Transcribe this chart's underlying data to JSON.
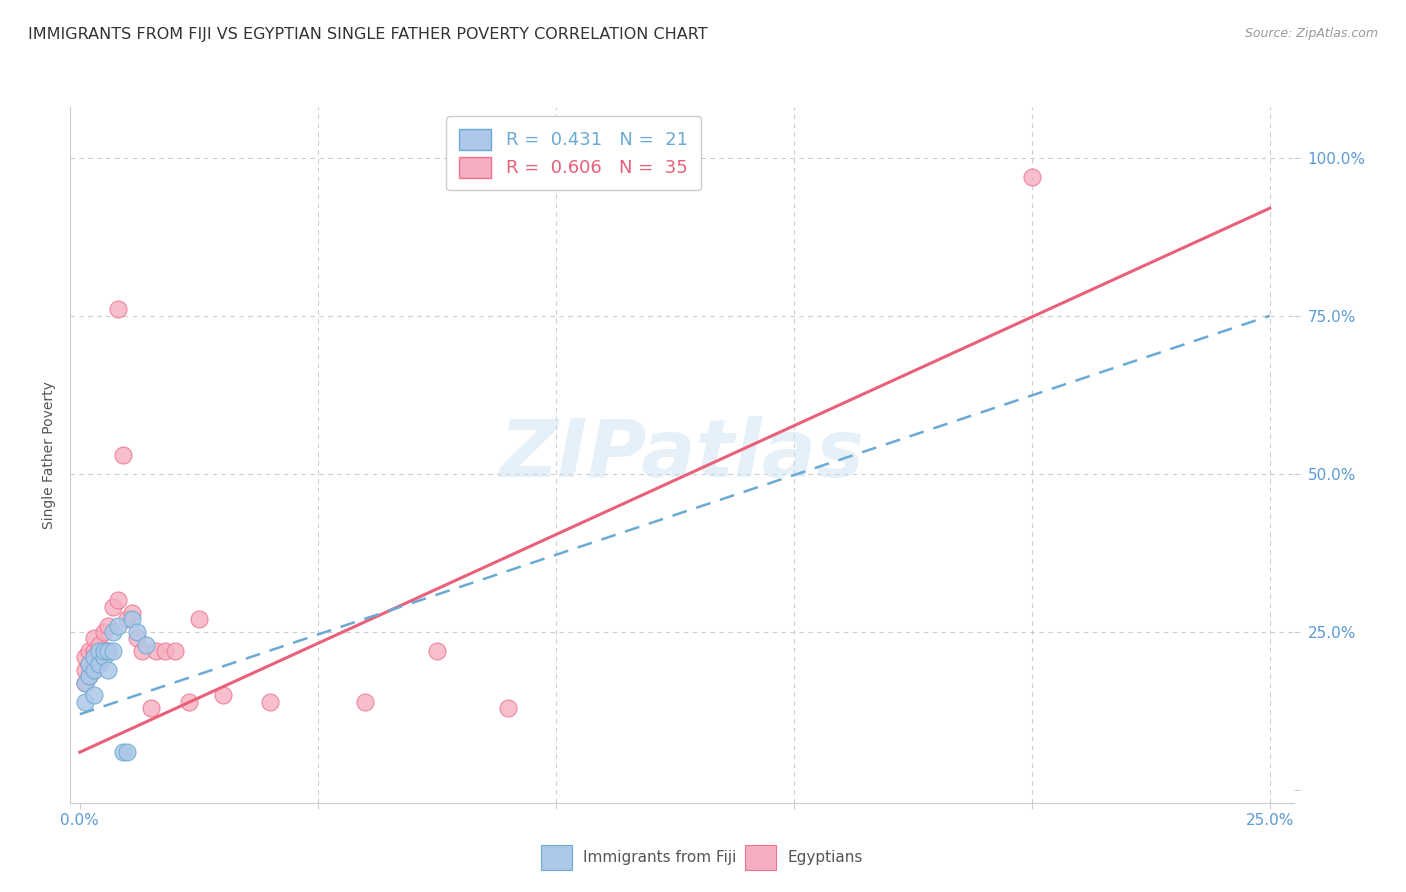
{
  "title": "IMMIGRANTS FROM FIJI VS EGYPTIAN SINGLE FATHER POVERTY CORRELATION CHART",
  "source": "Source: ZipAtlas.com",
  "ylabel": "Single Father Poverty",
  "yticks": [
    0.0,
    0.25,
    0.5,
    0.75,
    1.0
  ],
  "ytick_labels": [
    "",
    "25.0%",
    "50.0%",
    "75.0%",
    "100.0%"
  ],
  "xticks": [
    0.0,
    0.05,
    0.1,
    0.15,
    0.2,
    0.25
  ],
  "xtick_labels_show": [
    "0.0%",
    "",
    "",
    "",
    "",
    "25.0%"
  ],
  "xlim": [
    -0.002,
    0.255
  ],
  "ylim": [
    -0.02,
    1.08
  ],
  "fiji_R": 0.431,
  "fiji_N": 21,
  "egypt_R": 0.606,
  "egypt_N": 35,
  "fiji_color": "#adc8e8",
  "egypt_color": "#f5afc0",
  "fiji_edge_color": "#6aaad4",
  "egypt_edge_color": "#f07090",
  "fiji_line_color": "#6aaad4",
  "egypt_line_color": "#e8607a",
  "fiji_points_x": [
    0.001,
    0.001,
    0.002,
    0.002,
    0.003,
    0.003,
    0.003,
    0.004,
    0.004,
    0.005,
    0.005,
    0.006,
    0.006,
    0.007,
    0.007,
    0.008,
    0.009,
    0.01,
    0.011,
    0.012,
    0.014
  ],
  "fiji_points_y": [
    0.14,
    0.17,
    0.18,
    0.2,
    0.19,
    0.21,
    0.15,
    0.2,
    0.22,
    0.21,
    0.22,
    0.19,
    0.22,
    0.22,
    0.25,
    0.26,
    0.06,
    0.06,
    0.27,
    0.25,
    0.23
  ],
  "egypt_points_x": [
    0.001,
    0.001,
    0.001,
    0.002,
    0.002,
    0.002,
    0.003,
    0.003,
    0.003,
    0.004,
    0.004,
    0.005,
    0.005,
    0.006,
    0.006,
    0.007,
    0.008,
    0.008,
    0.009,
    0.01,
    0.011,
    0.012,
    0.013,
    0.015,
    0.016,
    0.018,
    0.02,
    0.023,
    0.025,
    0.03,
    0.04,
    0.06,
    0.075,
    0.09,
    0.2
  ],
  "egypt_points_y": [
    0.17,
    0.19,
    0.21,
    0.18,
    0.2,
    0.22,
    0.19,
    0.22,
    0.24,
    0.2,
    0.23,
    0.22,
    0.25,
    0.22,
    0.26,
    0.29,
    0.3,
    0.76,
    0.53,
    0.27,
    0.28,
    0.24,
    0.22,
    0.13,
    0.22,
    0.22,
    0.22,
    0.14,
    0.27,
    0.15,
    0.14,
    0.14,
    0.22,
    0.13,
    0.97
  ],
  "fiji_trend_x": [
    0.0,
    0.25
  ],
  "fiji_trend_y": [
    0.12,
    0.75
  ],
  "egypt_trend_x": [
    0.0,
    0.25
  ],
  "egypt_trend_y": [
    0.06,
    0.92
  ],
  "background_color": "#ffffff",
  "grid_color": "#cccccc",
  "title_fontsize": 11.5,
  "tick_color": "#5b9bd5"
}
